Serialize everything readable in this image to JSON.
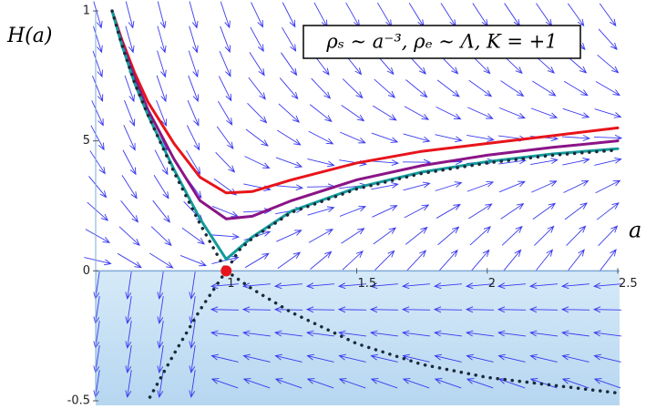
{
  "chart_data": {
    "type": "line",
    "title": "ρₛ ∼ a⁻³, ρₑ ∼ Λ, K = +1",
    "y_label": "H(a)",
    "x_label": "a",
    "xlim": [
      0.5,
      2.5
    ],
    "xticks": [
      1,
      1.5,
      2,
      2.5
    ],
    "ylim": [
      -0.5,
      10
    ],
    "yticks": [
      {
        "value": 10,
        "label": "1"
      },
      5,
      0,
      -0.5
    ],
    "y_scale": "piecewise",
    "series": [
      {
        "name": "red",
        "color": "#e8141b",
        "style": "solid",
        "x": [
          0.563,
          0.6,
          0.65,
          0.7,
          0.8,
          0.9,
          1.0,
          1.1,
          1.25,
          1.5,
          1.75,
          2.0,
          2.25,
          2.5
        ],
        "values": [
          10,
          8.9,
          7.6,
          6.5,
          4.9,
          3.6,
          3.0,
          3.05,
          3.5,
          4.15,
          4.6,
          4.9,
          5.2,
          5.5
        ]
      },
      {
        "name": "purple",
        "color": "#8a1487",
        "style": "solid",
        "x": [
          0.563,
          0.6,
          0.65,
          0.7,
          0.8,
          0.9,
          1.0,
          1.1,
          1.25,
          1.5,
          1.75,
          2.0,
          2.25,
          2.5
        ],
        "values": [
          10,
          8.8,
          7.4,
          6.2,
          4.3,
          2.7,
          2.0,
          2.1,
          2.7,
          3.5,
          4.05,
          4.45,
          4.75,
          5.0
        ]
      },
      {
        "name": "teal",
        "color": "#139b9b",
        "style": "solid",
        "x": [
          0.563,
          0.6,
          0.65,
          0.7,
          0.8,
          0.9,
          1.0,
          1.1,
          1.25,
          1.5,
          1.75,
          2.0,
          2.25,
          2.5
        ],
        "values": [
          10,
          8.7,
          7.2,
          6.0,
          3.9,
          2.0,
          0.45,
          1.3,
          2.3,
          3.2,
          3.8,
          4.2,
          4.5,
          4.7
        ]
      },
      {
        "name": "separatrix-upper",
        "color": "#1a2a3a",
        "style": "dotted",
        "x": [
          0.563,
          0.6,
          0.65,
          0.7,
          0.8,
          0.9,
          0.95,
          1.0,
          1.05,
          1.1,
          1.25,
          1.5,
          1.75,
          2.0,
          2.25,
          2.5
        ],
        "values": [
          10,
          8.7,
          7.2,
          6.0,
          3.8,
          1.8,
          0.9,
          0,
          0.8,
          1.25,
          2.25,
          3.15,
          3.75,
          4.15,
          4.45,
          4.65
        ]
      },
      {
        "name": "separatrix-lower-right",
        "color": "#1a2a3a",
        "style": "dotted",
        "x": [
          1.0,
          1.1,
          1.25,
          1.5,
          1.75,
          2.0,
          2.25,
          2.5
        ],
        "values": [
          0,
          -0.07,
          -0.16,
          -0.28,
          -0.36,
          -0.41,
          -0.44,
          -0.47
        ]
      },
      {
        "name": "separatrix-lower-left",
        "color": "#1a2a3a",
        "style": "dotted",
        "x": [
          1.0,
          0.9,
          0.8,
          0.7
        ],
        "values": [
          0,
          -0.15,
          -0.32,
          -0.5
        ]
      }
    ],
    "points": [
      {
        "x": 1,
        "y": 0,
        "color": "#e8141b"
      }
    ]
  }
}
